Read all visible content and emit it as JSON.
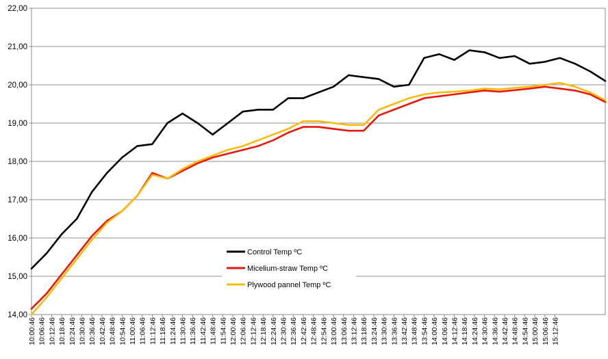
{
  "chart_data": {
    "type": "line",
    "title": "",
    "xlabel": "",
    "ylabel": "",
    "ylim": [
      14,
      22
    ],
    "y_ticks": [
      "14,00",
      "15,00",
      "16,00",
      "17,00",
      "18,00",
      "19,00",
      "20,00",
      "21,00",
      "22,00"
    ],
    "grid": "horizontal",
    "legend_position": "lower-center",
    "x_tick_labels": [
      "10:00:46",
      "10:06:46",
      "10:12:46",
      "10:18:46",
      "10:24:46",
      "10:30:46",
      "10:36:46",
      "10:42:46",
      "10:48:46",
      "10:54:46",
      "11:00:46",
      "11:06:46",
      "11:12:46",
      "11:18:46",
      "11:24:46",
      "11:30:46",
      "11:36:46",
      "11:42:46",
      "11:48:46",
      "11:54:46",
      "12:00:46",
      "12:06:46",
      "12:12:46",
      "12:18:46",
      "12:24:46",
      "12:30:46",
      "12:36:46",
      "12:42:46",
      "12:48:46",
      "12:54:46",
      "13:00:46",
      "13:06:46",
      "13:12:46",
      "13:18:46",
      "13:24:46",
      "13:30:46",
      "13:36:46",
      "13:42:46",
      "13:48:46",
      "13:54:46",
      "14:00:46",
      "14:06:46",
      "14:12:46",
      "14:18:46",
      "14:24:46",
      "14:30:46",
      "14:36:46",
      "14:42:46",
      "14:48:46",
      "14:54:46",
      "15:00:46",
      "15:06:46",
      "15:12:46"
    ],
    "x_minutes": [
      0,
      9,
      18,
      27,
      36,
      45,
      54,
      63,
      72,
      81,
      90,
      99,
      108,
      117,
      126,
      135,
      144,
      153,
      162,
      171,
      180,
      189,
      198,
      207,
      216,
      225,
      234,
      243,
      252,
      261,
      270,
      279,
      288,
      297,
      306,
      315,
      324,
      333,
      342
    ],
    "series": [
      {
        "name": "Control Temp ºC",
        "color": "#000000",
        "values": [
          15.2,
          15.6,
          16.1,
          16.5,
          17.2,
          17.7,
          18.1,
          18.4,
          18.45,
          19.0,
          19.25,
          19.0,
          18.7,
          19.0,
          19.3,
          19.35,
          19.35,
          19.65,
          19.65,
          19.8,
          19.95,
          20.25,
          20.2,
          20.15,
          19.95,
          20.0,
          20.7,
          20.8,
          20.65,
          20.9,
          20.85,
          20.7,
          20.75,
          20.55,
          20.6,
          20.7,
          20.55,
          20.35,
          20.1
        ]
      },
      {
        "name": "Micelium-straw Temp ºC",
        "color": "#e8170c",
        "values": [
          14.15,
          14.55,
          15.05,
          15.55,
          16.05,
          16.45,
          16.7,
          17.1,
          17.7,
          17.55,
          17.75,
          17.95,
          18.1,
          18.2,
          18.3,
          18.4,
          18.55,
          18.75,
          18.9,
          18.9,
          18.85,
          18.8,
          18.8,
          19.2,
          19.35,
          19.5,
          19.65,
          19.7,
          19.75,
          19.8,
          19.85,
          19.82,
          19.86,
          19.9,
          19.95,
          19.9,
          19.85,
          19.75,
          19.55
        ]
      },
      {
        "name": "Plywood pannel Temp ºC",
        "color": "#f5bc0d",
        "values": [
          14.0,
          14.45,
          14.95,
          15.45,
          15.95,
          16.4,
          16.7,
          17.1,
          17.65,
          17.55,
          17.8,
          18.0,
          18.15,
          18.3,
          18.4,
          18.55,
          18.7,
          18.85,
          19.05,
          19.05,
          19.0,
          18.95,
          18.95,
          19.35,
          19.5,
          19.65,
          19.75,
          19.8,
          19.82,
          19.85,
          19.9,
          19.88,
          19.92,
          19.95,
          20.0,
          20.05,
          19.95,
          19.8,
          19.6
        ]
      }
    ]
  }
}
